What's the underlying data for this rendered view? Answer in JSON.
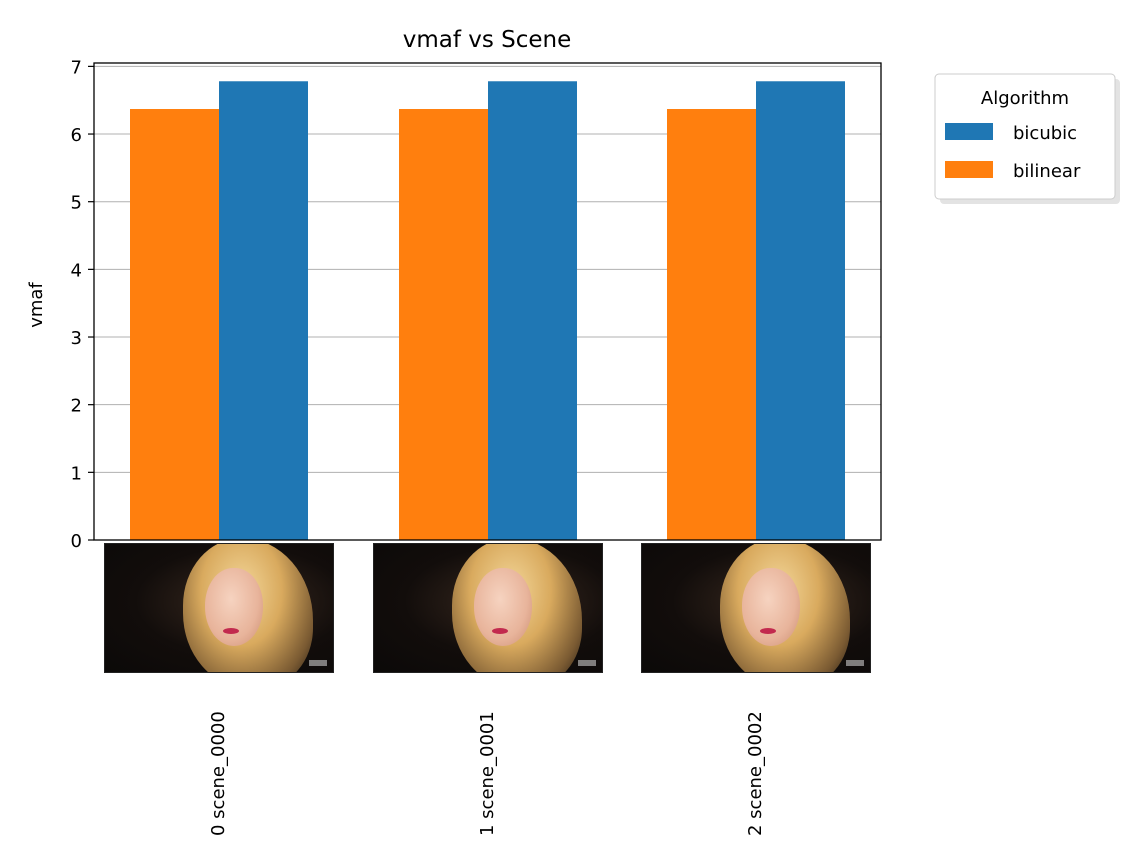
{
  "chart_data": {
    "type": "bar",
    "title": "vmaf vs Scene",
    "xlabel": "",
    "ylabel": "vmaf",
    "categories": [
      "0 scene_0000",
      "1 scene_0001",
      "2 scene_0002"
    ],
    "series": [
      {
        "name": "bilinear",
        "values": [
          6.37,
          6.37,
          6.37
        ],
        "color": "#ff7f0e"
      },
      {
        "name": "bicubic",
        "values": [
          6.78,
          6.78,
          6.78
        ],
        "color": "#1f77b4"
      }
    ],
    "ylim": [
      0,
      7.05
    ],
    "yticks": [
      "0",
      "1",
      "2",
      "3",
      "4",
      "5",
      "6",
      "7"
    ],
    "grid": "horizontal",
    "legend": {
      "title": "Algorithm",
      "placement": "outside-top-right",
      "entries": [
        "bicubic",
        "bilinear"
      ]
    },
    "x_tick_thumbnails": true
  }
}
